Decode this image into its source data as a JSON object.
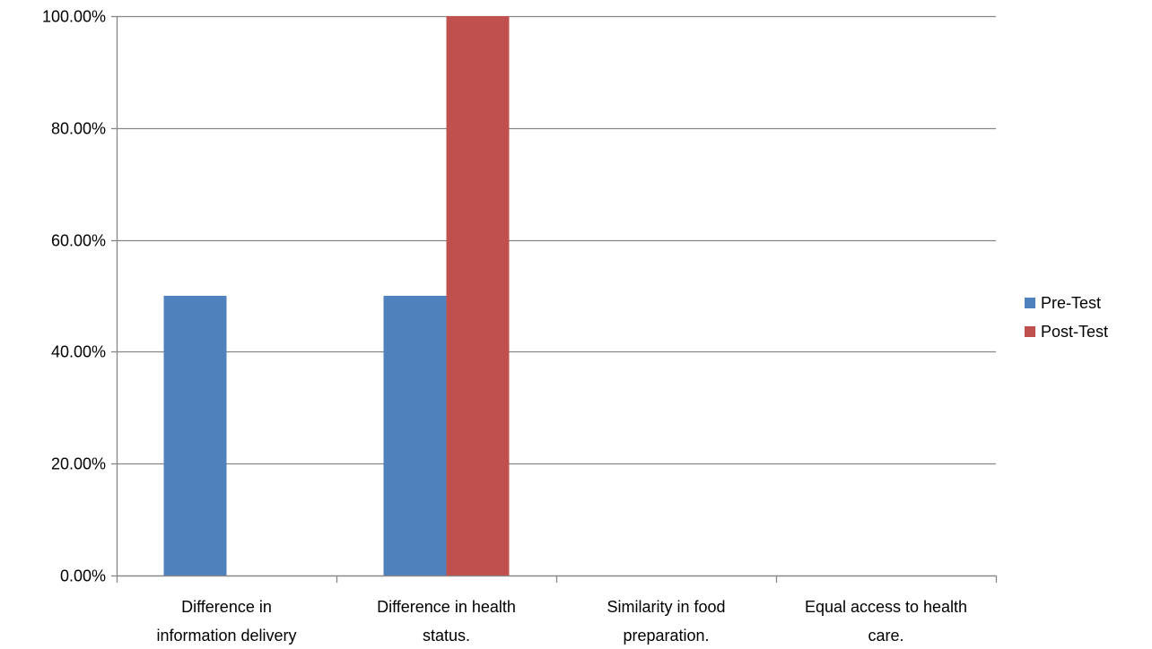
{
  "chart_data": {
    "type": "bar",
    "categories": [
      [
        "Difference in",
        "information delivery"
      ],
      [
        "Difference in health",
        "status."
      ],
      [
        "Similarity in food",
        "preparation."
      ],
      [
        "Equal access to health",
        "care."
      ]
    ],
    "series": [
      {
        "name": "Pre-Test",
        "color": "#4F81BD",
        "values": [
          0.5,
          0.5,
          0,
          0
        ]
      },
      {
        "name": "Post-Test",
        "color": "#C0504D",
        "values": [
          0,
          1.0,
          0,
          0
        ]
      }
    ],
    "ylim": [
      0,
      1
    ],
    "yticks": [
      "0.00%",
      "20.00%",
      "40.00%",
      "60.00%",
      "80.00%",
      "100.00%"
    ],
    "grid": true,
    "legend_position": "right",
    "title": "",
    "xlabel": "",
    "ylabel": ""
  }
}
